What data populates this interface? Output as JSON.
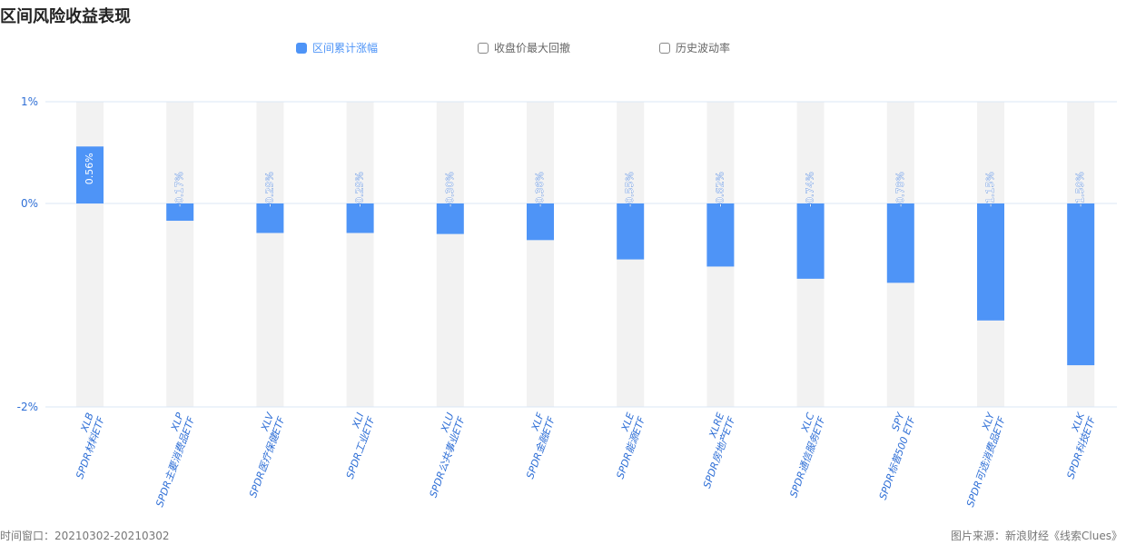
{
  "title": "区间风险收益表现",
  "legend": [
    {
      "label": "区间累计涨幅",
      "active": true
    },
    {
      "label": "收盘价最大回撤",
      "active": false
    },
    {
      "label": "历史波动率",
      "active": false
    }
  ],
  "chart_data": {
    "type": "bar",
    "categories": [
      {
        "code": "XLB",
        "name": "SPDR材料ETF"
      },
      {
        "code": "XLP",
        "name": "SPDR主要消费品ETF"
      },
      {
        "code": "XLV",
        "name": "SPDR医疗保健ETF"
      },
      {
        "code": "XLI",
        "name": "SPDR工业ETF"
      },
      {
        "code": "XLU",
        "name": "SPDR公共事业ETF"
      },
      {
        "code": "XLF",
        "name": "SPDR金融ETF"
      },
      {
        "code": "XLE",
        "name": "SPDR能源ETF"
      },
      {
        "code": "XLRE",
        "name": "SPDR房地产ETF"
      },
      {
        "code": "XLC",
        "name": "SPDR通信服务ETF"
      },
      {
        "code": "SPY",
        "name": "SPDR标普500 ETF"
      },
      {
        "code": "XLY",
        "name": "SPDR可选消费品ETF"
      },
      {
        "code": "XLK",
        "name": "SPDR科技ETF"
      }
    ],
    "series": [
      {
        "name": "区间累计涨幅",
        "values": [
          0.56,
          -0.17,
          -0.29,
          -0.29,
          -0.3,
          -0.36,
          -0.55,
          -0.62,
          -0.74,
          -0.78,
          -1.15,
          -1.59
        ]
      }
    ],
    "value_labels": [
      "0.56%",
      "-0.17%",
      "-0.29%",
      "-0.29%",
      "-0.30%",
      "-0.36%",
      "-0.55%",
      "-0.62%",
      "-0.74%",
      "-0.78%",
      "-1.15%",
      "-1.59%"
    ],
    "y_ticks": [
      {
        "value": 1,
        "label": "1%"
      },
      {
        "value": 0,
        "label": "0%"
      },
      {
        "value": -2,
        "label": "-2%"
      }
    ],
    "ylim": [
      -2,
      1
    ],
    "bar_color": "#4e94f7",
    "background_bar_color": "#f2f2f2",
    "axis_label_color": "#2f6fd6",
    "grid": true
  },
  "footer": {
    "left": "时间窗口：20210302-20210302",
    "right": "图片来源：新浪财经《线索Clues》"
  }
}
